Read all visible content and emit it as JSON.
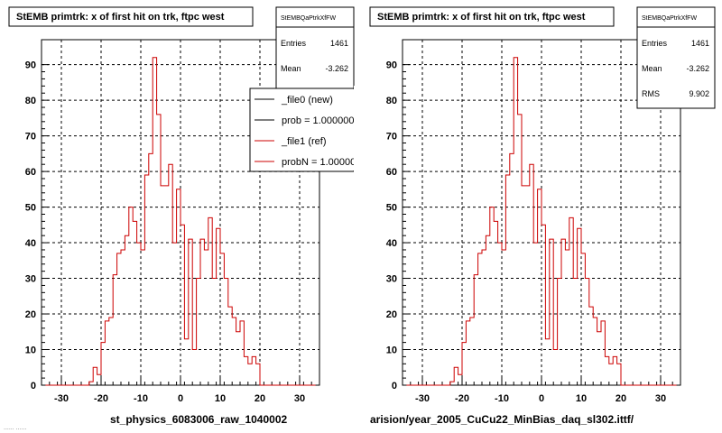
{
  "footer": {
    "left_caption": "st_physics_6083006_raw_1040002",
    "right_caption": "arision/year_2005_CuCu22_MinBias_daq_sl302.ittf/",
    "corner_note": "...... ......"
  },
  "colors": {
    "file0": "#000000",
    "file1": "#cc0000"
  },
  "chart_data": [
    {
      "type": "histogram",
      "title": "StEMB primtrk: x of first hit on trk, ftpc west",
      "xlim": [
        -35,
        35
      ],
      "ylim": [
        0,
        97
      ],
      "xticks": [
        -30,
        -20,
        -10,
        0,
        10,
        20,
        30
      ],
      "yticks": [
        0,
        10,
        20,
        30,
        40,
        50,
        60,
        70,
        80,
        90
      ],
      "grid": true,
      "stats": {
        "name": "StEMBQaPtrkXfFW",
        "entries_label": "Entries",
        "entries": "1461",
        "mean_label": "Mean",
        "mean": "-3.262"
      },
      "legend": [
        {
          "label": "_file0 (new)",
          "color": "#000000"
        },
        {
          "label": "prob = 1.000000",
          "color": "#000000"
        },
        {
          "label": "_file1 (ref)",
          "color": "#cc0000"
        },
        {
          "label": "probN = 1.000000",
          "color": "#cc0000"
        }
      ],
      "bin_edges_start": -34,
      "bin_width": 1,
      "values": [
        0,
        0,
        0,
        0,
        0,
        0,
        0,
        0,
        0,
        0,
        0,
        1,
        5,
        3,
        12,
        18,
        19,
        31,
        37,
        38,
        42,
        50,
        46,
        40,
        38,
        59,
        65,
        92,
        76,
        56,
        56,
        62,
        40,
        55,
        45,
        13,
        41,
        10,
        30,
        41,
        38,
        47,
        30,
        44,
        37,
        30,
        22,
        19,
        15,
        18,
        8,
        6,
        8,
        6,
        0,
        0,
        0,
        0,
        0,
        0,
        0,
        0,
        0,
        0,
        0,
        0,
        0,
        0
      ]
    },
    {
      "type": "histogram",
      "title": "StEMB primtrk: x of first hit on trk, ftpc west",
      "xlim": [
        -35,
        35
      ],
      "ylim": [
        0,
        97
      ],
      "xticks": [
        -30,
        -20,
        -10,
        0,
        10,
        20,
        30
      ],
      "yticks": [
        0,
        10,
        20,
        30,
        40,
        50,
        60,
        70,
        80,
        90
      ],
      "grid": true,
      "stats": {
        "name": "StEMBQaPtrkXfFW",
        "entries_label": "Entries",
        "entries": "1461",
        "mean_label": "Mean",
        "mean": "-3.262",
        "rms_label": "RMS",
        "rms": "9.902"
      },
      "bin_edges_start": -34,
      "bin_width": 1,
      "values": [
        0,
        0,
        0,
        0,
        0,
        0,
        0,
        0,
        0,
        0,
        0,
        1,
        5,
        3,
        12,
        18,
        19,
        31,
        37,
        38,
        42,
        50,
        46,
        40,
        38,
        59,
        65,
        92,
        76,
        56,
        56,
        62,
        40,
        55,
        45,
        13,
        41,
        10,
        30,
        41,
        38,
        47,
        30,
        44,
        37,
        30,
        22,
        19,
        15,
        18,
        8,
        6,
        8,
        6,
        0,
        0,
        0,
        0,
        0,
        0,
        0,
        0,
        0,
        0,
        0,
        0,
        0,
        0
      ]
    }
  ]
}
